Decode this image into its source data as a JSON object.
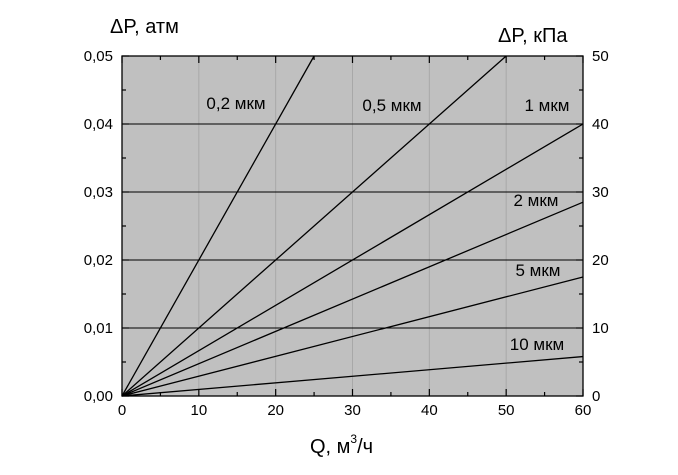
{
  "chart_data": {
    "type": "line",
    "xlabel": "Q, м³/ч",
    "xlabel_base": "Q, м",
    "xlabel_sup": "3",
    "xlabel_tail": "/ч",
    "ylabel_left": "ΔP, атм",
    "ylabel_right": "ΔP, кПа",
    "xlim": [
      0,
      60
    ],
    "ylim_left": [
      0,
      0.05
    ],
    "ylim_right": [
      0,
      50
    ],
    "x_ticks": [
      0,
      10,
      20,
      30,
      40,
      50,
      60
    ],
    "x_tick_labels": [
      "0",
      "10",
      "20",
      "30",
      "40",
      "50",
      "60"
    ],
    "y_left_ticks": [
      0,
      0.01,
      0.02,
      0.03,
      0.04,
      0.05
    ],
    "y_left_tick_labels": [
      "0,00",
      "0,01",
      "0,02",
      "0,03",
      "0,04",
      "0,05"
    ],
    "y_right_ticks": [
      0,
      10,
      20,
      30,
      40,
      50
    ],
    "y_right_tick_labels": [
      "0",
      "10",
      "20",
      "30",
      "40",
      "50"
    ],
    "grid": true,
    "plot_background": "#c0c0c0",
    "grid_color": "#a8a8a8",
    "line_color": "#000000",
    "series": [
      {
        "name": "0,2 мкм",
        "x": [
          0,
          25
        ],
        "y": [
          0,
          0.05
        ]
      },
      {
        "name": "0,5 мкм",
        "x": [
          0,
          50
        ],
        "y": [
          0,
          0.05
        ]
      },
      {
        "name": "1 мкм",
        "x": [
          0,
          60
        ],
        "y": [
          0,
          0.04
        ]
      },
      {
        "name": "2 мкм",
        "x": [
          0,
          60
        ],
        "y": [
          0,
          0.0285
        ]
      },
      {
        "name": "5 мкм",
        "x": [
          0,
          60
        ],
        "y": [
          0,
          0.0175
        ]
      },
      {
        "name": "10 мкм",
        "x": [
          0,
          60
        ],
        "y": [
          0,
          0.0058
        ]
      }
    ]
  }
}
